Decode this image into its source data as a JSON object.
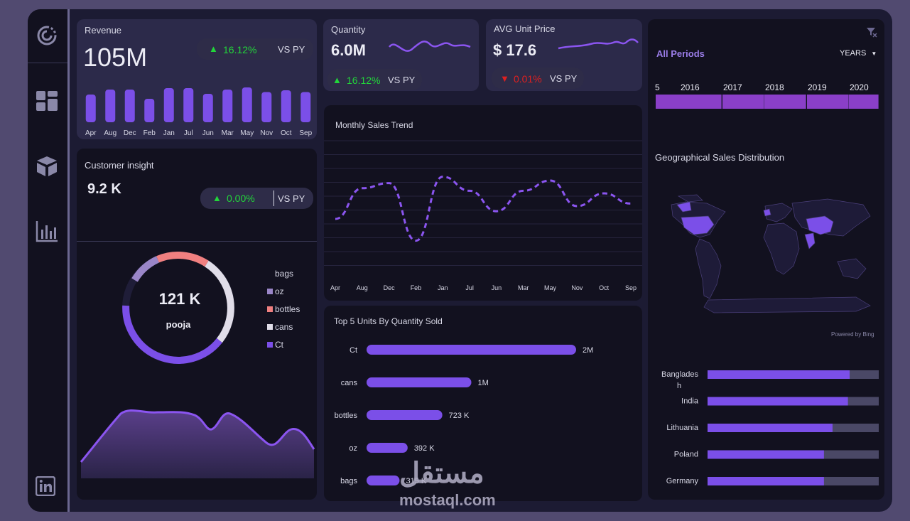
{
  "revenue": {
    "title": "Revenue",
    "value": "105M",
    "change": "16.12%",
    "vs": "VS PY",
    "months": [
      "Apr",
      "Aug",
      "Dec",
      "Feb",
      "Jan",
      "Jul",
      "Jun",
      "Mar",
      "May",
      "Nov",
      "Oct",
      "Sep"
    ],
    "levels": [
      0.78,
      0.92,
      0.92,
      0.66,
      0.96,
      0.96,
      0.8,
      0.92,
      0.98,
      0.85,
      0.9,
      0.85
    ]
  },
  "quantity": {
    "title": "Quantity",
    "value": "6.0M",
    "change": "16.12%",
    "vs": "VS PY"
  },
  "avg_price": {
    "title": "AVG Unit Price",
    "value": "$ 17.6",
    "change": "0.01%",
    "vs": "VS PY"
  },
  "customer": {
    "title": "Customer  insight",
    "value": "9.2 K",
    "change": "0.00%",
    "vs": "VS PY"
  },
  "donut": {
    "value": "121 K",
    "sub": "pooja",
    "legend_title": "bags",
    "legend": [
      {
        "label": "oz",
        "color": "#9a86c8"
      },
      {
        "label": "bottles",
        "color": "#f08080"
      },
      {
        "label": "cans",
        "color": "#e0dde8"
      },
      {
        "label": "Ct",
        "color": "#7b4fe8"
      }
    ]
  },
  "trend": {
    "title": "Monthly Sales Trend"
  },
  "top_units": {
    "title": "Top 5 Units By Quantity Sold"
  },
  "periods": {
    "label": "All Periods",
    "select": "YEARS",
    "years": [
      "5",
      "2016",
      "2017",
      "2018",
      "2019",
      "2020"
    ]
  },
  "geo": {
    "title": "Geographical Sales Distribution",
    "powered": "Powered by Bing"
  },
  "countries": {
    "items": [
      {
        "label": "Banglades",
        "label2": "h",
        "share": 0.83
      },
      {
        "label": "India",
        "label2": "",
        "share": 0.82
      },
      {
        "label": "Lithuania",
        "label2": "",
        "share": 0.73
      },
      {
        "label": "Poland",
        "label2": "",
        "share": 0.68
      },
      {
        "label": "Germany",
        "label2": "",
        "share": 0.68
      }
    ]
  },
  "watermark": {
    "arabic": "مستقل",
    "latin": "mostaql.com"
  },
  "colors": {
    "accent": "#7b4fe8",
    "card": "#12111f",
    "bg": "#1c1b33",
    "up": "#22d63a",
    "down": "#e02020"
  },
  "chart_data": [
    {
      "type": "bar",
      "title": "Revenue",
      "categories": [
        "Apr",
        "Aug",
        "Dec",
        "Feb",
        "Jan",
        "Jul",
        "Jun",
        "Mar",
        "May",
        "Nov",
        "Oct",
        "Sep"
      ],
      "values": [
        0.78,
        0.92,
        0.92,
        0.66,
        0.96,
        0.96,
        0.8,
        0.92,
        0.98,
        0.85,
        0.9,
        0.85
      ]
    },
    {
      "type": "line",
      "title": "Monthly Sales Trend",
      "categories": [
        "Apr",
        "Aug",
        "Dec",
        "Feb",
        "Jan",
        "Jul",
        "Jun",
        "Mar",
        "May",
        "Nov",
        "Oct",
        "Sep"
      ],
      "values": [
        0.4,
        0.64,
        0.68,
        0.23,
        0.73,
        0.62,
        0.46,
        0.62,
        0.7,
        0.5,
        0.6,
        0.52
      ],
      "grid": true
    },
    {
      "type": "bar",
      "orientation": "horizontal",
      "title": "Top 5 Units By Quantity Sold",
      "categories": [
        "Ct",
        "cans",
        "bottles",
        "oz",
        "bags"
      ],
      "values": [
        2000000,
        1000000,
        723000,
        392000,
        315000
      ],
      "labels": [
        "2M",
        "1M",
        "723 K",
        "392 K",
        "315 K"
      ]
    }
  ]
}
